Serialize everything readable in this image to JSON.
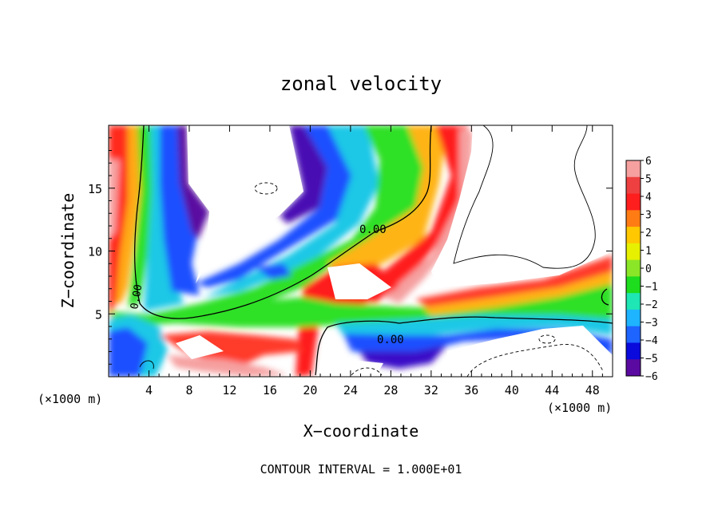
{
  "chart_data": {
    "type": "heatmap",
    "title": "zonal velocity",
    "xlabel": "X−coordinate",
    "ylabel": "Z−coordinate",
    "x_unit": "(×1000 m)",
    "z_unit": "(×1000 m)",
    "xlim": [
      0,
      50
    ],
    "ylim": [
      0,
      20
    ],
    "x_ticks": [
      "4",
      "8",
      "12",
      "16",
      "20",
      "24",
      "28",
      "32",
      "36",
      "40",
      "44",
      "48"
    ],
    "y_ticks": [
      "5",
      "10",
      "15"
    ],
    "colorbar": {
      "levels": [
        "6",
        "5",
        "4",
        "3",
        "2",
        "1",
        "0",
        "−1",
        "−2",
        "−3",
        "−4",
        "−5",
        "−6"
      ],
      "colors": [
        "#f6a0a0",
        "#ee4040",
        "#ff1e1e",
        "#ff7c14",
        "#ffc800",
        "#e6f000",
        "#8ce628",
        "#1edc1e",
        "#1ee6b4",
        "#1eb4ff",
        "#1e64ff",
        "#0a0adc",
        "#5a0aa0"
      ]
    },
    "contour_labels": [
      "0.00",
      "0.00",
      "0.00"
    ],
    "footer": "CONTOUR INTERVAL = 1.000E+01"
  }
}
